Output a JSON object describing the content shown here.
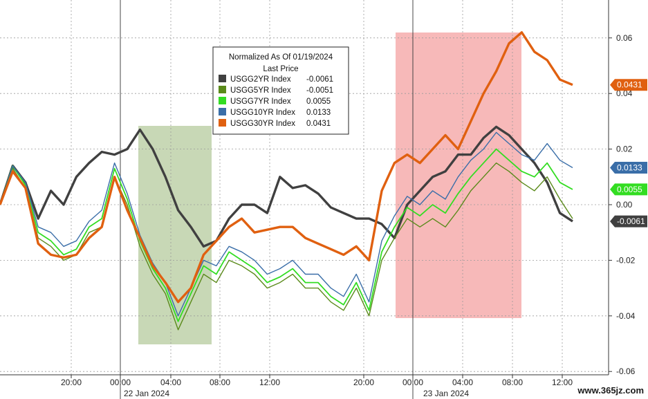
{
  "chart_data": {
    "type": "line",
    "legend": {
      "title_line1": "Normalized As Of 01/19/2024",
      "title_line2": "Last Price",
      "placement": "top-center"
    },
    "y_axis": {
      "side": "right",
      "ylim": [
        -0.065,
        0.067
      ],
      "ticks": [
        0.06,
        0.04,
        0.02,
        0.0,
        -0.02,
        -0.04,
        -0.06
      ],
      "tick_labels": [
        "0.06",
        "0.04",
        "0.02",
        "0.00",
        "-0.02",
        "-0.04",
        "-0.06"
      ]
    },
    "x_axis": {
      "time_labels": [
        "20:00",
        "00:00",
        "04:00",
        "08:00",
        "12:00",
        "20:00",
        "00:00",
        "04:00",
        "08:00",
        "12:00"
      ],
      "date_labels": [
        "22 Jan 2024",
        "23 Jan 2024"
      ]
    },
    "grid": true,
    "highlight_regions": [
      {
        "color": "#9bb87a"
      },
      {
        "color": "#f08080"
      }
    ],
    "series": [
      {
        "name": "USGG2YR Index",
        "last_value": "-0.0061",
        "color": "#404040",
        "values": [
          0,
          0.014,
          0.008,
          -0.005,
          0.005,
          0.0,
          0.01,
          0.015,
          0.019,
          0.018,
          0.02,
          0.027,
          0.02,
          0.01,
          -0.002,
          -0.008,
          -0.015,
          -0.013,
          -0.005,
          0.0,
          0.0,
          -0.003,
          0.01,
          0.006,
          0.007,
          0.004,
          -0.001,
          -0.003,
          -0.005,
          -0.005,
          -0.007,
          -0.012,
          0.0,
          0.005,
          0.01,
          0.012,
          0.018,
          0.018,
          0.024,
          0.028,
          0.025,
          0.02,
          0.015,
          0.008,
          -0.003,
          -0.006
        ]
      },
      {
        "name": "USGG5YR Index",
        "last_value": "-0.0051",
        "color": "#5a8a1a",
        "values": [
          0,
          0.013,
          0.006,
          -0.012,
          -0.015,
          -0.02,
          -0.018,
          -0.01,
          -0.008,
          0.01,
          0.0,
          -0.015,
          -0.025,
          -0.032,
          -0.045,
          -0.035,
          -0.025,
          -0.028,
          -0.02,
          -0.022,
          -0.025,
          -0.03,
          -0.028,
          -0.025,
          -0.03,
          -0.03,
          -0.035,
          -0.038,
          -0.03,
          -0.04,
          -0.02,
          -0.012,
          -0.005,
          -0.008,
          -0.005,
          -0.008,
          -0.002,
          0.005,
          0.01,
          0.015,
          0.012,
          0.008,
          0.005,
          0.01,
          0.002,
          -0.005
        ]
      },
      {
        "name": "USGG7YR Index",
        "last_value": "0.0055",
        "color": "#33dd22",
        "values": [
          0,
          0.014,
          0.007,
          -0.01,
          -0.013,
          -0.018,
          -0.016,
          -0.008,
          -0.005,
          0.013,
          0.002,
          -0.013,
          -0.023,
          -0.03,
          -0.042,
          -0.032,
          -0.022,
          -0.025,
          -0.017,
          -0.02,
          -0.023,
          -0.028,
          -0.026,
          -0.023,
          -0.028,
          -0.028,
          -0.033,
          -0.036,
          -0.028,
          -0.038,
          -0.017,
          -0.008,
          -0.001,
          -0.004,
          0.0,
          -0.003,
          0.004,
          0.01,
          0.015,
          0.02,
          0.016,
          0.012,
          0.01,
          0.015,
          0.008,
          0.0055
        ]
      },
      {
        "name": "USGG10YR Index",
        "last_value": "0.0133",
        "color": "#3a6ea8",
        "values": [
          0,
          0.014,
          0.008,
          -0.008,
          -0.01,
          -0.015,
          -0.013,
          -0.006,
          -0.002,
          0.015,
          0.004,
          -0.011,
          -0.021,
          -0.028,
          -0.04,
          -0.03,
          -0.02,
          -0.022,
          -0.015,
          -0.017,
          -0.02,
          -0.025,
          -0.023,
          -0.02,
          -0.025,
          -0.025,
          -0.03,
          -0.033,
          -0.025,
          -0.035,
          -0.013,
          -0.004,
          0.003,
          0.0,
          0.005,
          0.002,
          0.01,
          0.016,
          0.02,
          0.026,
          0.022,
          0.018,
          0.016,
          0.022,
          0.016,
          0.0133
        ]
      },
      {
        "name": "USGG30YR Index",
        "last_value": "0.0431",
        "color": "#e06010",
        "values": [
          0,
          0.012,
          0.006,
          -0.014,
          -0.018,
          -0.019,
          -0.018,
          -0.012,
          -0.008,
          0.01,
          -0.002,
          -0.012,
          -0.022,
          -0.028,
          -0.035,
          -0.03,
          -0.018,
          -0.013,
          -0.008,
          -0.005,
          -0.01,
          -0.009,
          -0.008,
          -0.008,
          -0.012,
          -0.014,
          -0.016,
          -0.018,
          -0.015,
          -0.02,
          0.005,
          0.015,
          0.018,
          0.015,
          0.02,
          0.025,
          0.02,
          0.03,
          0.04,
          0.048,
          0.058,
          0.062,
          0.055,
          0.052,
          0.045,
          0.0431
        ]
      }
    ]
  },
  "watermark": "www.365jz.com"
}
